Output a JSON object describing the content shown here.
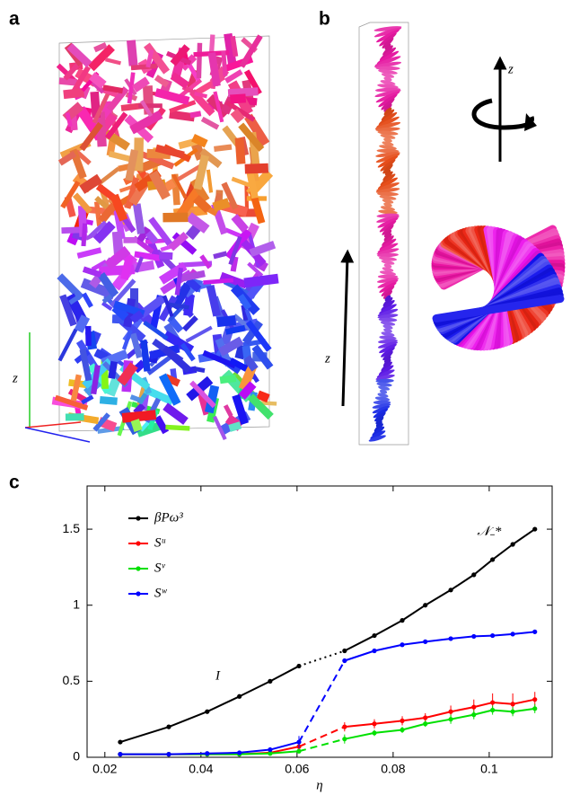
{
  "panel_a": {
    "label": "a",
    "axis": "z"
  },
  "panel_b": {
    "label": "b",
    "axis_left": "z",
    "axis_right": "z"
  },
  "panel_c": {
    "label": "c"
  },
  "chart_data": {
    "type": "line",
    "x_label": "η",
    "xlim": [
      0.0163,
      0.1131
    ],
    "ylim": [
      0,
      1.784
    ],
    "xticks": [
      0.02,
      0.04,
      0.06,
      0.08,
      0.1
    ],
    "yticks": [
      0,
      0.5,
      1,
      1.5
    ],
    "legend": "top-left",
    "annotations": [
      {
        "text": "I",
        "x": 0.0435,
        "y": 0.53
      },
      {
        "text": "𝒩₋*",
        "x": 0.1,
        "y": 1.48
      }
    ],
    "x": [
      0.0232,
      0.0333,
      0.0413,
      0.048,
      0.0544,
      0.0604,
      0.0699,
      0.0761,
      0.0819,
      0.0867,
      0.092,
      0.0968,
      0.1007,
      0.1049,
      0.1095
    ],
    "series": [
      {
        "name": "βPω³",
        "color": "#000000",
        "values": [
          0.1,
          0.2,
          0.3,
          0.4,
          0.5,
          0.6,
          0.7,
          0.8,
          0.9,
          1.0,
          1.1,
          1.2,
          1.3,
          1.4,
          1.5
        ]
      },
      {
        "name": "Sᵘ",
        "color": "#ff0000",
        "values": [
          0.02,
          0.02,
          0.02,
          0.02,
          0.03,
          0.07,
          0.2,
          0.22,
          0.24,
          0.26,
          0.3,
          0.33,
          0.36,
          0.35,
          0.38
        ],
        "errors": [
          0.005,
          0.005,
          0.005,
          0.005,
          0.01,
          0.02,
          0.03,
          0.03,
          0.03,
          0.03,
          0.04,
          0.05,
          0.06,
          0.07,
          0.05
        ]
      },
      {
        "name": "Sᵛ",
        "color": "#00e000",
        "values": [
          0.02,
          0.02,
          0.02,
          0.02,
          0.025,
          0.04,
          0.12,
          0.16,
          0.18,
          0.22,
          0.25,
          0.28,
          0.31,
          0.3,
          0.32
        ],
        "errors": [
          0.005,
          0.005,
          0.005,
          0.005,
          0.01,
          0.01,
          0.03,
          0.02,
          0.02,
          0.02,
          0.03,
          0.03,
          0.03,
          0.03,
          0.03
        ]
      },
      {
        "name": "Sʷ",
        "color": "#0000ff",
        "values": [
          0.02,
          0.02,
          0.025,
          0.03,
          0.05,
          0.1,
          0.635,
          0.7,
          0.74,
          0.76,
          0.78,
          0.795,
          0.8,
          0.81,
          0.825
        ],
        "errors": [
          0.005,
          0.005,
          0.005,
          0.005,
          0.015,
          0.04,
          0.015,
          0.01,
          0.01,
          0.01,
          0.01,
          0.01,
          0.01,
          0.01,
          0.01
        ]
      }
    ]
  }
}
